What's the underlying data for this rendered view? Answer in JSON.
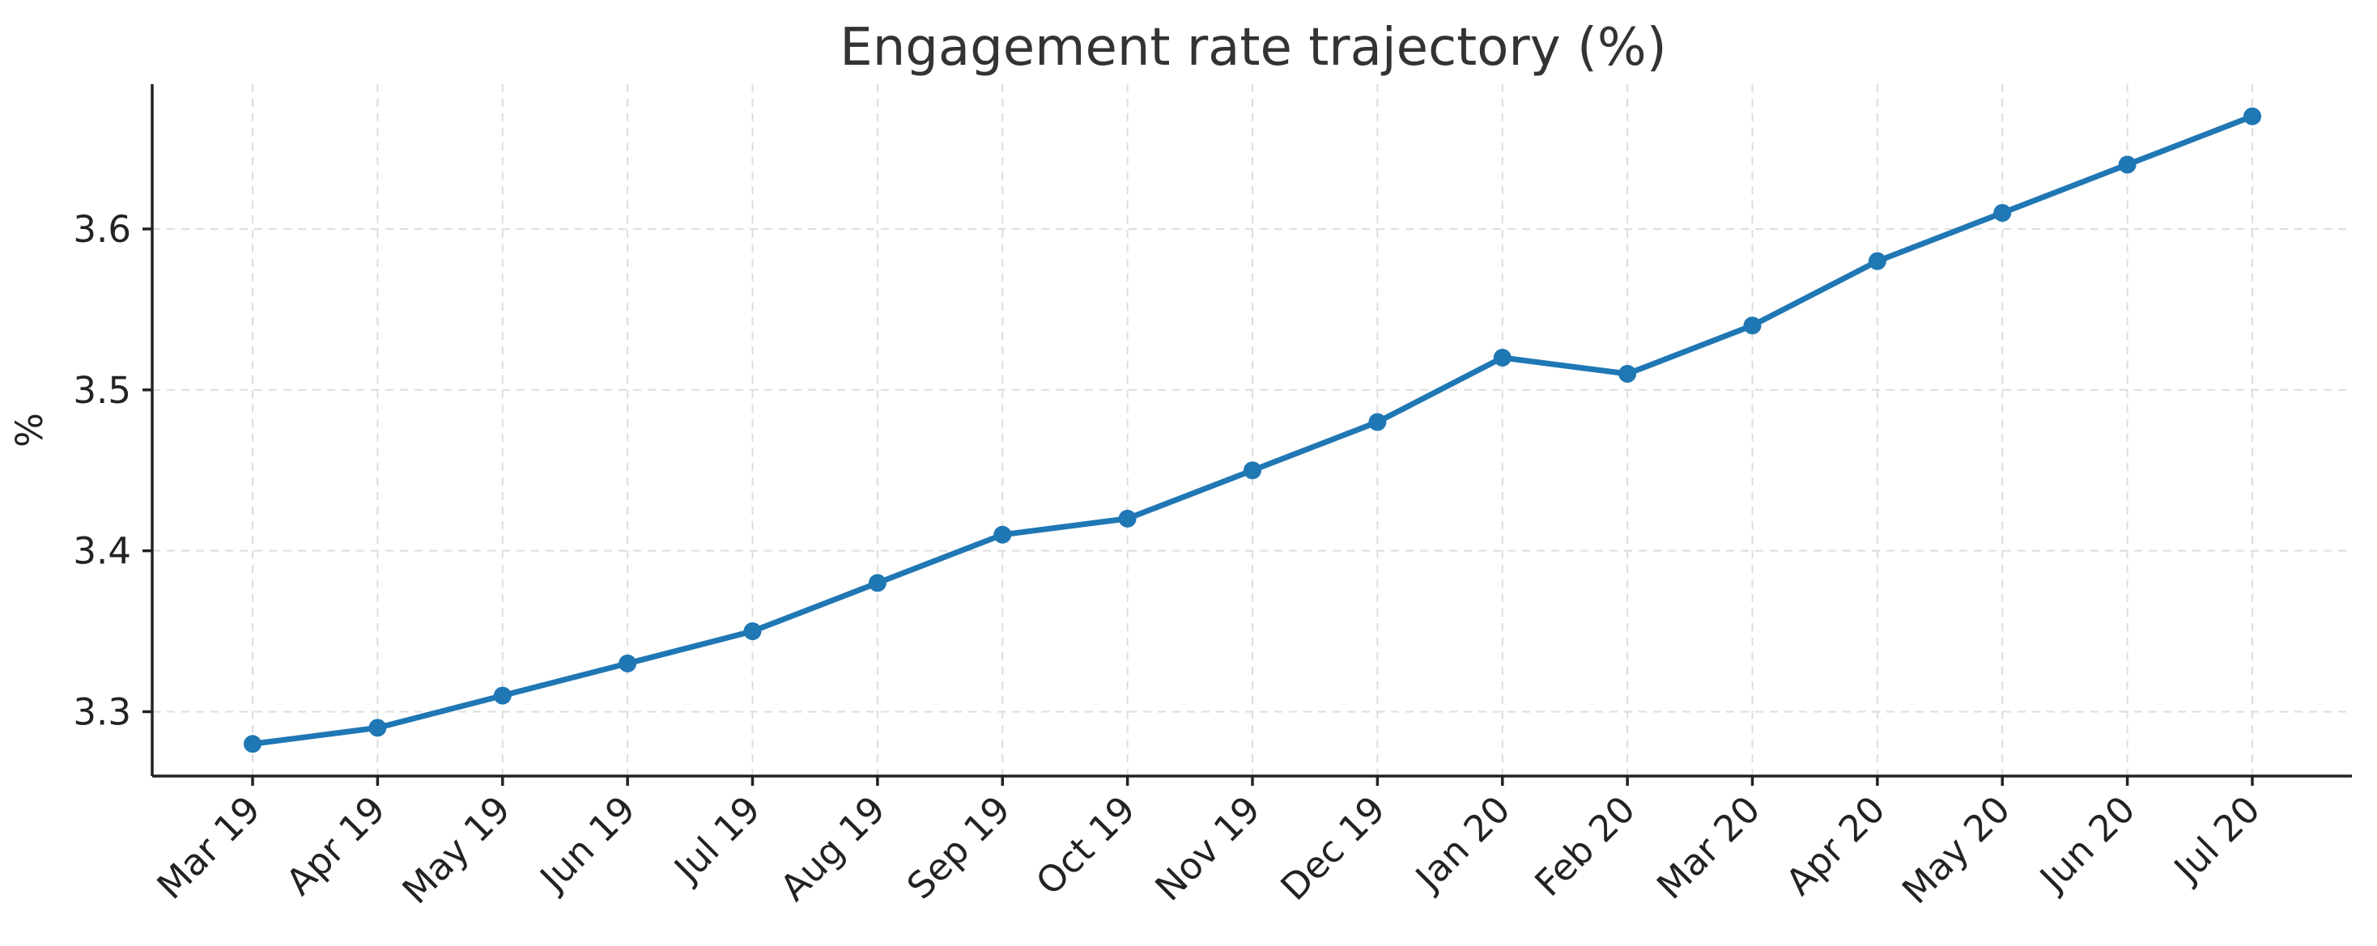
{
  "chart_data": {
    "type": "line",
    "title": "Engagement rate trajectory (%)",
    "xlabel": "",
    "ylabel": "%",
    "categories": [
      "Mar 19",
      "Apr 19",
      "May 19",
      "Jun 19",
      "Jul 19",
      "Aug 19",
      "Sep 19",
      "Oct 19",
      "Nov 19",
      "Dec 19",
      "Jan 20",
      "Feb 20",
      "Mar 20",
      "Apr 20",
      "May 20",
      "Jun 20",
      "Jul 20"
    ],
    "series": [
      {
        "values": [
          3.28,
          3.29,
          3.31,
          3.33,
          3.35,
          3.38,
          3.41,
          3.42,
          3.45,
          3.48,
          3.52,
          3.51,
          3.54,
          3.58,
          3.61,
          3.64,
          3.67
        ]
      }
    ],
    "yticks": [
      "3.3",
      "3.4",
      "3.5",
      "3.6"
    ],
    "ylim": [
      3.26,
      3.69
    ],
    "grid": true,
    "colors": {
      "line": "#1f77b4",
      "grid": "#dddddd",
      "axis": "#222222"
    }
  }
}
